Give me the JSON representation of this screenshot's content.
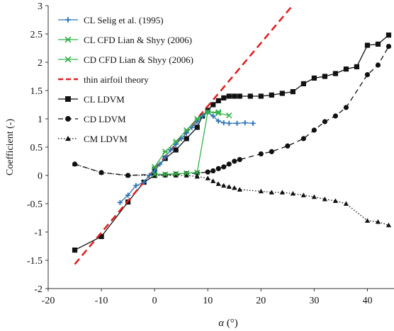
{
  "chart_data": {
    "type": "line",
    "title": "",
    "xlabel_symbol": "α",
    "xlabel_unit": "(°)",
    "ylabel": "Coefficient (-)",
    "xlim": [
      -20,
      45
    ],
    "ylim": [
      -2,
      3
    ],
    "xticks": [
      -20,
      -10,
      0,
      10,
      20,
      30,
      40
    ],
    "yticks": [
      -2,
      -1.5,
      -1,
      -0.5,
      0,
      0.5,
      1,
      1.5,
      2,
      2.5,
      3
    ],
    "grid": false,
    "legend_position": "top-left",
    "series": [
      {
        "name": "CL Selig et al. (1995)",
        "color": "#2e75b6",
        "line": "solid",
        "marker": "plus",
        "x": [
          -6.5,
          -5,
          -3.5,
          -2,
          -1,
          0,
          1,
          2,
          3,
          4,
          5,
          6,
          7,
          8,
          9,
          10,
          11,
          12,
          13,
          14,
          15.5,
          17,
          18.5
        ],
        "y": [
          -0.48,
          -0.35,
          -0.18,
          -0.12,
          0.0,
          0.08,
          0.2,
          0.32,
          0.45,
          0.55,
          0.65,
          0.75,
          0.85,
          0.95,
          1.05,
          1.12,
          1.05,
          0.96,
          0.93,
          0.92,
          0.92,
          0.93,
          0.92
        ]
      },
      {
        "name": "CL CFD Lian & Shyy (2006)",
        "color": "#33b24a",
        "line": "solid",
        "marker": "x-star",
        "x": [
          0,
          2,
          4,
          6,
          8,
          10,
          12
        ],
        "y": [
          0.15,
          0.42,
          0.6,
          0.8,
          1.0,
          1.12,
          1.12
        ]
      },
      {
        "name": "CD CFD Lian & Shyy (2006)",
        "color": "#33b24a",
        "line": "solid",
        "marker": "x",
        "x": [
          0,
          2,
          4,
          6,
          8,
          10,
          12,
          14
        ],
        "y": [
          0.02,
          0.02,
          0.03,
          0.04,
          0.05,
          1.12,
          1.1,
          1.06
        ]
      },
      {
        "name": "thin airfoil theory",
        "color": "#e02020",
        "line": "dashed",
        "marker": "none",
        "x": [
          -15,
          25.9
        ],
        "y": [
          -1.57,
          3.0
        ]
      },
      {
        "name": "CL LDVM",
        "color": "#111111",
        "line": "solid",
        "marker": "square",
        "x": [
          -15,
          -10,
          -5,
          -2,
          0,
          0,
          2,
          4,
          6,
          8,
          9,
          10,
          11,
          12,
          13,
          14,
          15,
          16,
          18,
          20,
          22,
          24,
          26,
          28,
          30,
          32,
          34,
          36,
          38,
          40,
          42,
          44
        ],
        "y": [
          -1.32,
          -1.08,
          -0.47,
          -0.12,
          0.0,
          0.1,
          0.3,
          0.45,
          0.65,
          0.85,
          1.05,
          1.15,
          1.25,
          1.32,
          1.37,
          1.4,
          1.4,
          1.4,
          1.4,
          1.4,
          1.42,
          1.45,
          1.48,
          1.62,
          1.72,
          1.75,
          1.8,
          1.88,
          1.92,
          2.3,
          2.32,
          2.48
        ]
      },
      {
        "name": "CD LDVM",
        "color": "#111111",
        "line": "dashed",
        "marker": "circle",
        "x": [
          -15,
          -10,
          -5,
          0,
          2,
          4,
          6,
          8,
          10,
          11,
          12,
          13,
          14,
          15,
          16,
          20,
          22,
          25,
          28,
          30,
          32,
          34,
          36,
          40,
          42,
          44
        ],
        "y": [
          0.2,
          0.05,
          0.0,
          0.02,
          0.01,
          0.02,
          0.03,
          0.04,
          0.06,
          0.08,
          0.12,
          0.15,
          0.2,
          0.25,
          0.28,
          0.38,
          0.42,
          0.52,
          0.65,
          0.8,
          0.95,
          1.05,
          1.2,
          1.78,
          1.95,
          2.28
        ]
      },
      {
        "name": "CM LDVM",
        "color": "#111111",
        "line": "dotted",
        "marker": "triangle",
        "x": [
          -15,
          -10,
          -5,
          0,
          2,
          4,
          6,
          8,
          10,
          11,
          12,
          13,
          14,
          15,
          16,
          20,
          22,
          24,
          26,
          28,
          30,
          32,
          34,
          36,
          40,
          42,
          44
        ],
        "y": [
          0.2,
          0.05,
          0.0,
          0.0,
          0.0,
          0.0,
          0.0,
          -0.02,
          -0.05,
          -0.1,
          -0.15,
          -0.18,
          -0.2,
          -0.22,
          -0.25,
          -0.28,
          -0.3,
          -0.3,
          -0.32,
          -0.35,
          -0.38,
          -0.42,
          -0.45,
          -0.5,
          -0.8,
          -0.82,
          -0.88
        ]
      }
    ]
  }
}
